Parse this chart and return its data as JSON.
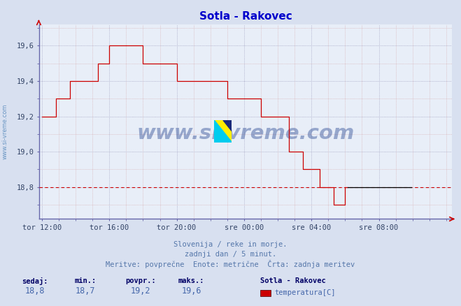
{
  "title": "Sotla - Rakovec",
  "title_color": "#0000cc",
  "bg_color": "#d8e0f0",
  "plot_bg_color": "#e8eef8",
  "grid_color_major": "#9999bb",
  "grid_color_minor": "#cc8888",
  "xlabel_ticks": [
    "tor 12:00",
    "tor 16:00",
    "tor 20:00",
    "sre 00:00",
    "sre 04:00",
    "sre 08:00"
  ],
  "xlabel_ticks_pos": [
    0,
    48,
    96,
    144,
    192,
    240
  ],
  "ylabel_ticks": [
    18.8,
    19.0,
    19.2,
    19.4,
    19.6
  ],
  "ylim": [
    18.62,
    19.72
  ],
  "xlim": [
    -2,
    292
  ],
  "line_color": "#cc0000",
  "last_line_color": "#000000",
  "dashed_line_value": 18.8,
  "dashed_line_color": "#cc0000",
  "watermark_text": "www.si-vreme.com",
  "watermark_color": "#1a3a8a",
  "watermark_alpha": 0.4,
  "sidebar_text": "www.si-vreme.com",
  "sidebar_color": "#5588bb",
  "footer_lines": [
    "Slovenija / reke in morje.",
    "zadnji dan / 5 minut.",
    "Meritve: povprečne  Enote: metrične  Črta: zadnja meritev"
  ],
  "footer_color": "#5577aa",
  "stats_labels": [
    "sedaj:",
    "min.:",
    "povpr.:",
    "maks.:"
  ],
  "stats_values": [
    "18,8",
    "18,7",
    "19,2",
    "19,6"
  ],
  "stats_label_color": "#000066",
  "stats_value_color": "#4466aa",
  "legend_title": "Sotla - Rakovec",
  "legend_label": "temperatura[C]",
  "legend_color": "#cc0000",
  "arrow_color": "#cc0000",
  "left_border_color": "#6666aa",
  "bottom_border_color": "#6666aa",
  "temp_data": [
    19.2,
    19.2,
    19.2,
    19.2,
    19.2,
    19.2,
    19.2,
    19.2,
    19.2,
    19.2,
    19.3,
    19.3,
    19.3,
    19.3,
    19.3,
    19.3,
    19.3,
    19.3,
    19.3,
    19.3,
    19.4,
    19.4,
    19.4,
    19.4,
    19.4,
    19.4,
    19.4,
    19.4,
    19.4,
    19.4,
    19.4,
    19.4,
    19.4,
    19.4,
    19.4,
    19.4,
    19.4,
    19.4,
    19.4,
    19.4,
    19.5,
    19.5,
    19.5,
    19.5,
    19.5,
    19.5,
    19.5,
    19.5,
    19.6,
    19.6,
    19.6,
    19.6,
    19.6,
    19.6,
    19.6,
    19.6,
    19.6,
    19.6,
    19.6,
    19.6,
    19.6,
    19.6,
    19.6,
    19.6,
    19.6,
    19.6,
    19.6,
    19.6,
    19.6,
    19.6,
    19.6,
    19.6,
    19.5,
    19.5,
    19.5,
    19.5,
    19.5,
    19.5,
    19.5,
    19.5,
    19.5,
    19.5,
    19.5,
    19.5,
    19.5,
    19.5,
    19.5,
    19.5,
    19.5,
    19.5,
    19.5,
    19.5,
    19.5,
    19.5,
    19.5,
    19.5,
    19.4,
    19.4,
    19.4,
    19.4,
    19.4,
    19.4,
    19.4,
    19.4,
    19.4,
    19.4,
    19.4,
    19.4,
    19.4,
    19.4,
    19.4,
    19.4,
    19.4,
    19.4,
    19.4,
    19.4,
    19.4,
    19.4,
    19.4,
    19.4,
    19.4,
    19.4,
    19.4,
    19.4,
    19.4,
    19.4,
    19.4,
    19.4,
    19.4,
    19.4,
    19.4,
    19.4,
    19.3,
    19.3,
    19.3,
    19.3,
    19.3,
    19.3,
    19.3,
    19.3,
    19.3,
    19.3,
    19.3,
    19.3,
    19.3,
    19.3,
    19.3,
    19.3,
    19.3,
    19.3,
    19.3,
    19.3,
    19.3,
    19.3,
    19.3,
    19.3,
    19.2,
    19.2,
    19.2,
    19.2,
    19.2,
    19.2,
    19.2,
    19.2,
    19.2,
    19.2,
    19.2,
    19.2,
    19.2,
    19.2,
    19.2,
    19.2,
    19.2,
    19.2,
    19.2,
    19.2,
    19.0,
    19.0,
    19.0,
    19.0,
    19.0,
    19.0,
    19.0,
    19.0,
    19.0,
    19.0,
    18.9,
    18.9,
    18.9,
    18.9,
    18.9,
    18.9,
    18.9,
    18.9,
    18.9,
    18.9,
    18.9,
    18.9,
    18.8,
    18.8,
    18.8,
    18.8,
    18.8,
    18.8,
    18.8,
    18.8,
    18.8,
    18.8,
    18.7,
    18.7,
    18.7,
    18.7,
    18.7,
    18.7,
    18.7,
    18.7,
    18.8,
    18.8,
    18.8,
    18.8,
    18.8,
    18.8,
    18.8,
    18.8,
    18.8,
    18.8,
    18.8,
    18.8,
    18.8,
    18.8,
    18.8,
    18.8,
    18.8,
    18.8,
    18.8,
    18.8,
    18.8,
    18.8,
    18.8,
    18.8,
    18.8,
    18.8,
    18.8,
    18.8,
    18.8,
    18.8,
    18.8,
    18.8,
    18.8,
    18.8,
    18.8,
    18.8,
    18.8,
    18.8,
    18.8,
    18.8,
    18.8,
    18.8,
    18.8,
    18.8,
    18.8,
    18.8,
    18.8,
    18.8
  ],
  "last_segment_start_idx": 218
}
